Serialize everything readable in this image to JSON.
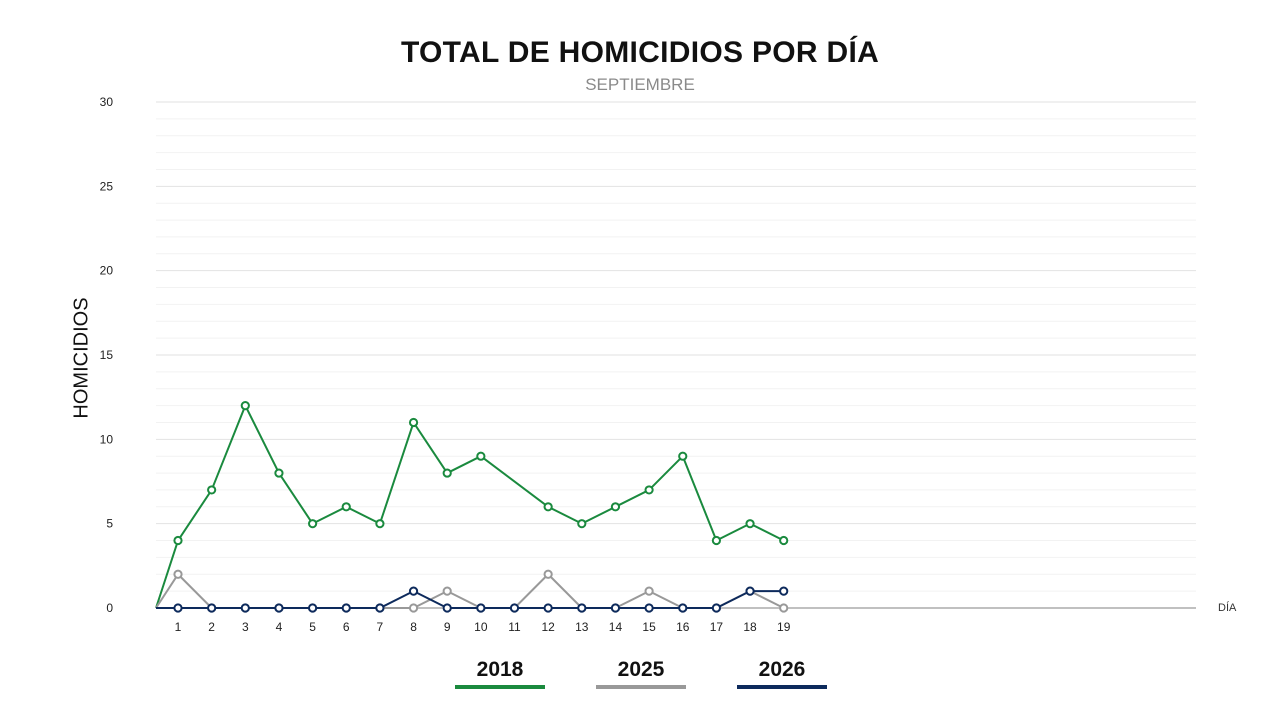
{
  "chart_data": {
    "type": "line",
    "title": "TOTAL DE HOMICIDIOS POR DÍA",
    "subtitle": "SEPTIEMBRE",
    "xlabel": "DÍA",
    "ylabel": "HOMICIDIOS",
    "ylim": [
      0,
      30
    ],
    "yticks": [
      0,
      5,
      10,
      15,
      20,
      25,
      30
    ],
    "x": [
      1,
      2,
      3,
      4,
      5,
      6,
      7,
      8,
      9,
      10,
      11,
      12,
      13,
      14,
      15,
      16,
      17,
      18,
      19
    ],
    "grid": true,
    "legend_position": "bottom",
    "series": [
      {
        "name": "2018",
        "color": "#1a8a3e",
        "values": [
          4,
          7,
          12,
          8,
          5,
          6,
          5,
          11,
          8,
          9,
          null,
          6,
          5,
          6,
          7,
          9,
          4,
          5,
          4
        ]
      },
      {
        "name": "2025",
        "color": "#999999",
        "values": [
          2,
          0,
          0,
          0,
          0,
          0,
          0,
          0,
          1,
          0,
          0,
          2,
          0,
          0,
          1,
          0,
          0,
          1,
          0
        ]
      },
      {
        "name": "2026",
        "color": "#0d2a5c",
        "values": [
          0,
          0,
          0,
          0,
          0,
          0,
          0,
          1,
          0,
          0,
          0,
          0,
          0,
          0,
          0,
          0,
          0,
          1,
          1
        ]
      }
    ]
  }
}
